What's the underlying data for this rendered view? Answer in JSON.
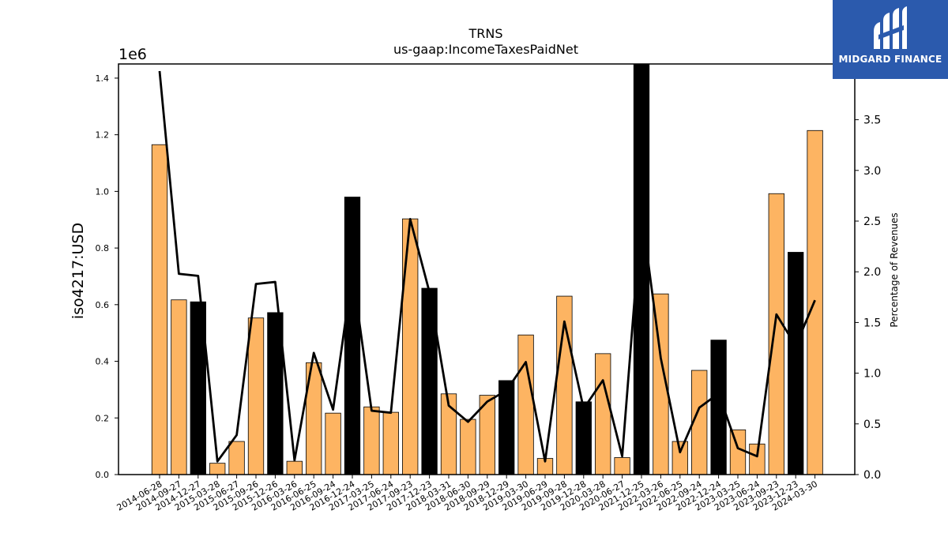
{
  "chart_data": {
    "type": "bar",
    "title": "TRNS",
    "subtitle": "us-gaap:IncomeTaxesPaidNet",
    "ylabel": "iso4217:USD",
    "y_offset_label": "1e6",
    "y2label": "Percentage of Revenues",
    "ylim": [
      0,
      1450000
    ],
    "y2lim": [
      0,
      4.05
    ],
    "yticks": [
      "0.0",
      "0.2",
      "0.4",
      "0.6",
      "0.8",
      "1.0",
      "1.2",
      "1.4"
    ],
    "y2ticks": [
      "0.0",
      "0.5",
      "1.0",
      "1.5",
      "2.0",
      "2.5",
      "3.0",
      "3.5"
    ],
    "categories": [
      "2014-06-28",
      "2014-09-27",
      "2014-12-27",
      "2015-03-28",
      "2015-06-27",
      "2015-09-26",
      "2015-12-26",
      "2016-03-26",
      "2016-06-25",
      "2016-09-24",
      "2016-12-24",
      "2017-03-25",
      "2017-06-24",
      "2017-09-23",
      "2017-12-23",
      "2018-03-31",
      "2018-06-30",
      "2018-09-29",
      "2018-12-29",
      "2019-03-30",
      "2019-06-29",
      "2019-09-28",
      "2019-12-28",
      "2020-03-28",
      "2020-06-27",
      "2021-12-25",
      "2022-03-26",
      "2022-06-25",
      "2022-09-24",
      "2022-12-24",
      "2023-03-25",
      "2023-06-24",
      "2023-09-23",
      "2023-12-23",
      "2024-03-30"
    ],
    "series": [
      {
        "type": "bar",
        "values": [
          1165000,
          617000,
          610000,
          40000,
          117000,
          553000,
          572000,
          47000,
          395000,
          217000,
          980000,
          239000,
          220000,
          903000,
          658000,
          285000,
          195000,
          280000,
          332000,
          493000,
          57000,
          630000,
          257000,
          427000,
          60000,
          1450000,
          638000,
          117000,
          368000,
          475000,
          158000,
          108000,
          992000,
          785000,
          1215000
        ],
        "highlight": [
          false,
          false,
          true,
          false,
          false,
          false,
          true,
          false,
          false,
          false,
          true,
          false,
          false,
          false,
          true,
          false,
          false,
          false,
          true,
          false,
          false,
          false,
          true,
          false,
          false,
          true,
          false,
          false,
          false,
          true,
          false,
          false,
          false,
          true,
          false
        ]
      },
      {
        "type": "line",
        "axis": "right",
        "values": [
          3.98,
          1.98,
          1.96,
          0.13,
          0.39,
          1.88,
          1.9,
          0.14,
          1.2,
          0.64,
          2.0,
          0.63,
          0.61,
          2.52,
          1.8,
          0.68,
          0.52,
          0.72,
          0.83,
          1.11,
          0.13,
          1.51,
          0.65,
          0.93,
          0.18,
          2.6,
          1.15,
          0.22,
          0.66,
          0.8,
          0.26,
          0.18,
          1.58,
          1.27,
          1.72
        ]
      }
    ],
    "colors": {
      "bar": "#fdb462",
      "highlight": "#000000",
      "line": "#000000"
    }
  },
  "logo": {
    "text": "MIDGARD FINANCE",
    "background": "#2b5aad"
  }
}
